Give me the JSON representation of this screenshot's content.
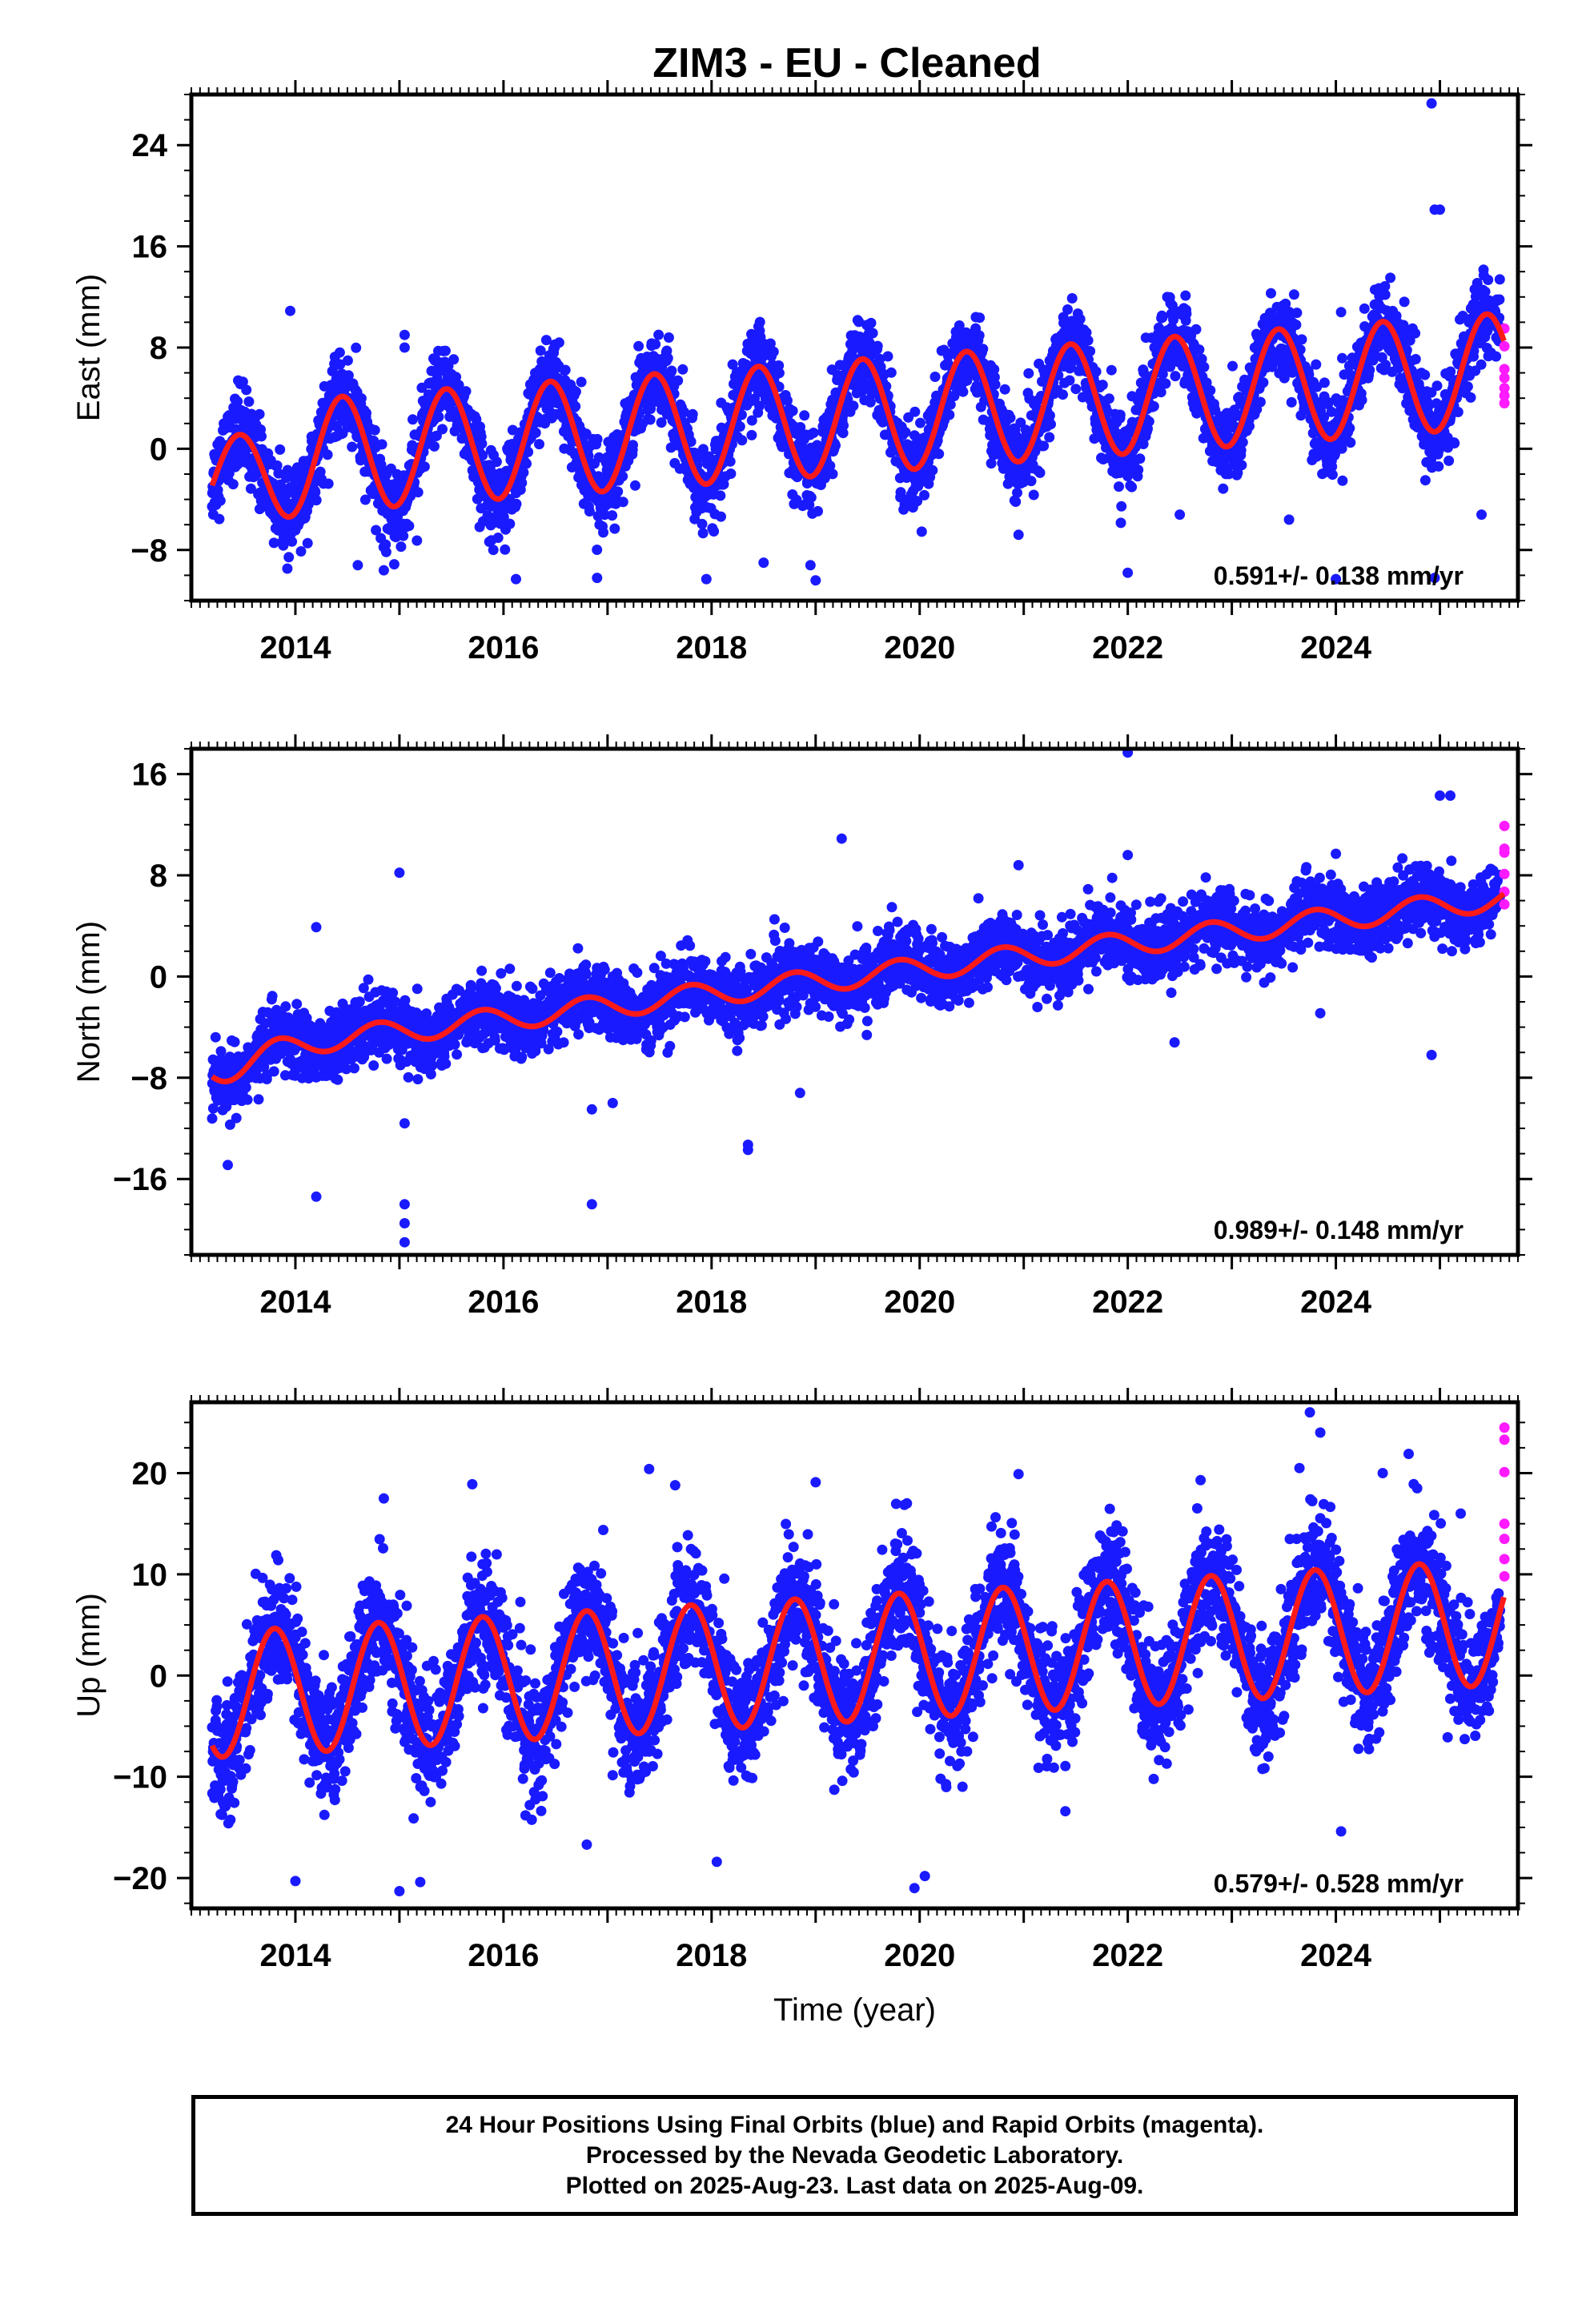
{
  "title": "ZIM3  - EU - Cleaned",
  "colors": {
    "final": "#1a1aff",
    "rapid": "#ff1aff",
    "model": "#ff1a1a",
    "frame": "#000000"
  },
  "chart_data": [
    {
      "type": "scatter",
      "name": "east",
      "ylabel": "East (mm)",
      "xlim": [
        2013.0,
        2025.75
      ],
      "ylim": [
        -12.0,
        28.0
      ],
      "yticks": [
        -8,
        0,
        8,
        16,
        24
      ],
      "yticklabels": [
        "−8",
        "0",
        "8",
        "16",
        "24"
      ],
      "xticks": [
        2014,
        2016,
        2018,
        2020,
        2022,
        2024
      ],
      "xticklabels": [
        "2014",
        "2016",
        "2018",
        "2020",
        "2022",
        "2024"
      ],
      "rate_label": "0.591+/- 0.138 mm/yr",
      "model": {
        "offset": -1.1,
        "trend": 0.591,
        "seasonal_amp": 4.5,
        "seasonal_phase": 0.2,
        "noise": 1.6,
        "start_dip": -2.5
      },
      "outliers": [
        [
          2013.95,
          10.9
        ],
        [
          2015.05,
          9.0
        ],
        [
          2015.05,
          8.0
        ],
        [
          2016.35,
          6.3
        ],
        [
          2013.45,
          5.4
        ],
        [
          2013.35,
          -0.5
        ],
        [
          2017.15,
          -4.2
        ],
        [
          2014.6,
          -9.2
        ],
        [
          2014.85,
          -9.6
        ],
        [
          2016.12,
          -10.3
        ],
        [
          2016.9,
          -10.2
        ],
        [
          2017.95,
          -10.3
        ],
        [
          2018.95,
          -9.2
        ],
        [
          2019.0,
          -10.4
        ],
        [
          2018.5,
          -9.0
        ],
        [
          2022.0,
          -9.8
        ],
        [
          2022.5,
          -5.2
        ],
        [
          2023.55,
          -5.6
        ],
        [
          2020.95,
          -6.8
        ],
        [
          2024.05,
          10.8
        ],
        [
          2025.22,
          10.5
        ],
        [
          2025.28,
          10.0
        ],
        [
          2024.92,
          27.3
        ],
        [
          2024.95,
          18.9
        ],
        [
          2025.0,
          18.9
        ],
        [
          2024.0,
          -10.3
        ],
        [
          2024.95,
          -10.2
        ],
        [
          2025.4,
          -5.2
        ]
      ],
      "rapid": [
        [
          2025.62,
          9.5
        ],
        [
          2025.62,
          8.1
        ],
        [
          2025.62,
          6.3
        ],
        [
          2025.62,
          5.6
        ],
        [
          2025.62,
          4.8
        ],
        [
          2025.62,
          4.2
        ],
        [
          2025.62,
          3.6
        ]
      ]
    },
    {
      "type": "scatter",
      "name": "north",
      "ylabel": "North (mm)",
      "xlim": [
        2013.0,
        2025.75
      ],
      "ylim": [
        -22.0,
        18.0
      ],
      "yticks": [
        -16,
        -8,
        0,
        8,
        16
      ],
      "yticklabels": [
        "−16",
        "−8",
        "0",
        "8",
        "16"
      ],
      "xticks": [
        2014,
        2016,
        2018,
        2020,
        2022,
        2024
      ],
      "xticklabels": [
        "2014",
        "2016",
        "2018",
        "2020",
        "2022",
        "2024"
      ],
      "rate_label": "0.989+/- 0.148 mm/yr",
      "model": {
        "offset": -6.1,
        "trend": 0.989,
        "seasonal_amp": 0.9,
        "seasonal_phase": 0.55,
        "noise": 1.3,
        "start_dip": -1.5
      },
      "outliers": [
        [
          2013.35,
          -14.9
        ],
        [
          2014.2,
          3.9
        ],
        [
          2014.2,
          -17.4
        ],
        [
          2015.0,
          8.2
        ],
        [
          2015.05,
          -18.0
        ],
        [
          2015.05,
          -19.5
        ],
        [
          2015.05,
          -21.0
        ],
        [
          2015.05,
          -11.6
        ],
        [
          2016.85,
          -18.0
        ],
        [
          2016.85,
          -10.5
        ],
        [
          2017.05,
          -10.0
        ],
        [
          2018.35,
          -13.3
        ],
        [
          2018.35,
          -13.7
        ],
        [
          2018.85,
          -9.2
        ],
        [
          2019.25,
          10.9
        ],
        [
          2020.95,
          8.8
        ],
        [
          2022.0,
          17.7
        ],
        [
          2022.0,
          9.6
        ],
        [
          2021.85,
          7.8
        ],
        [
          2023.85,
          -2.9
        ],
        [
          2024.0,
          9.7
        ],
        [
          2024.92,
          -6.2
        ],
        [
          2025.0,
          14.3
        ],
        [
          2025.1,
          14.3
        ],
        [
          2022.45,
          -5.2
        ],
        [
          2017.6,
          -5.5
        ]
      ],
      "rapid": [
        [
          2025.62,
          11.9
        ],
        [
          2025.62,
          10.1
        ],
        [
          2025.62,
          9.8
        ],
        [
          2025.62,
          8.1
        ],
        [
          2025.62,
          6.7
        ],
        [
          2025.62,
          5.7
        ]
      ]
    },
    {
      "type": "scatter",
      "name": "up",
      "ylabel": "Up (mm)",
      "xlim": [
        2013.0,
        2025.75
      ],
      "ylim": [
        -23.0,
        27.0
      ],
      "yticks": [
        -20,
        -10,
        0,
        10,
        20
      ],
      "yticklabels": [
        "−20",
        "−10",
        "0",
        "10",
        "20"
      ],
      "xticks": [
        2014,
        2016,
        2018,
        2020,
        2022,
        2024
      ],
      "xticklabels": [
        "2014",
        "2016",
        "2018",
        "2020",
        "2022",
        "2024"
      ],
      "xlabel": "Time (year)",
      "rate_label": "0.579+/- 0.528 mm/yr",
      "model": {
        "offset": -1.9,
        "trend": 0.579,
        "seasonal_amp": 6.2,
        "seasonal_phase": 0.55,
        "noise": 3.0,
        "start_dip": 0
      },
      "outliers": [
        [
          2014.0,
          -20.3
        ],
        [
          2014.85,
          17.5
        ],
        [
          2015.0,
          -21.3
        ],
        [
          2015.2,
          -20.4
        ],
        [
          2015.7,
          18.9
        ],
        [
          2017.4,
          20.4
        ],
        [
          2017.65,
          18.8
        ],
        [
          2018.05,
          -18.4
        ],
        [
          2019.0,
          19.1
        ],
        [
          2019.95,
          -21.0
        ],
        [
          2020.05,
          -19.8
        ],
        [
          2020.95,
          19.9
        ],
        [
          2022.7,
          19.3
        ],
        [
          2023.65,
          20.5
        ],
        [
          2023.75,
          26.0
        ],
        [
          2023.85,
          24.0
        ],
        [
          2024.05,
          -15.4
        ],
        [
          2024.45,
          20.0
        ],
        [
          2024.7,
          21.9
        ],
        [
          2025.2,
          16.0
        ],
        [
          2013.35,
          -12.3
        ],
        [
          2016.8,
          -16.7
        ],
        [
          2021.4,
          -13.4
        ]
      ],
      "rapid": [
        [
          2025.62,
          24.5
        ],
        [
          2025.62,
          23.3
        ],
        [
          2025.62,
          20.1
        ],
        [
          2025.62,
          15.0
        ],
        [
          2025.62,
          13.5
        ],
        [
          2025.62,
          11.5
        ],
        [
          2025.62,
          9.8
        ]
      ]
    }
  ],
  "footer": {
    "line1": "24 Hour Positions Using Final Orbits (blue) and Rapid Orbits (magenta).",
    "line2": "Processed by the Nevada Geodetic Laboratory.",
    "line3": "Plotted on 2025-Aug-23. Last data on 2025-Aug-09."
  }
}
